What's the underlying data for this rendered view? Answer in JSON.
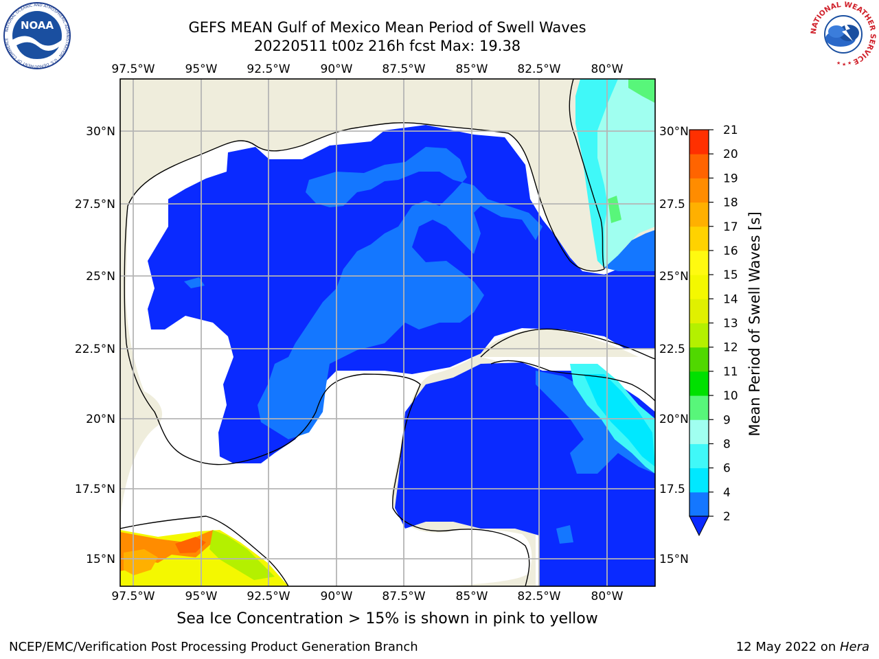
{
  "title_line1": "GEFS MEAN Gulf of Mexico Mean Period of Swell Waves",
  "title_line2": "20220511 t00z 216h fcst   Max: 19.38",
  "logos": {
    "noaa_text": "NOAA",
    "noaa_ring": "NATIONAL OCEANIC AND ATMOSPHERIC ADMINISTRATION · U.S. DEPARTMENT OF COMMERCE",
    "nws_ring": "NATIONAL WEATHER SERVICE"
  },
  "map": {
    "lon_labels": [
      "97.5°W",
      "95°W",
      "92.5°W",
      "90°W",
      "87.5°W",
      "85°W",
      "82.5°W",
      "80°W"
    ],
    "lat_labels_left": [
      "30°N",
      "27.5°N",
      "25°N",
      "22.5°N",
      "20°N",
      "17.5°N",
      "15°N"
    ],
    "lat_labels_right": [
      "30°N",
      "27.5",
      "25°N",
      "22.5",
      "20°N",
      "17.5",
      "15°N"
    ],
    "lon_range": [
      -98,
      -78.25
    ],
    "lat_range": [
      14,
      31.75
    ],
    "land_color": "#efeddc",
    "grid_color": "#b4b4b4"
  },
  "colorbar": {
    "label": "Mean Period of Swell Waves [s]",
    "ticks": [
      "2",
      "4",
      "6",
      "8",
      "9",
      "10",
      "11",
      "12",
      "13",
      "14",
      "15",
      "16",
      "17",
      "18",
      "19",
      "20",
      "21"
    ],
    "colors": [
      "#1477ff",
      "#00e8ff",
      "#40f8f8",
      "#a0fff0",
      "#58f67a",
      "#00e000",
      "#50d800",
      "#b4f000",
      "#e0f000",
      "#f4f800",
      "#fffa10",
      "#ffd200",
      "#ffb000",
      "#ff8c00",
      "#ff6400",
      "#ff3000"
    ],
    "extend_color": "#0a2aff"
  },
  "caption": "Sea Ice Concentration > 15% is shown in pink to yellow",
  "footer_left": "NCEP/EMC/Verification Post Processing Product Generation Branch",
  "footer_right_date": "12 May 2022 on ",
  "footer_right_host": "Hera"
}
